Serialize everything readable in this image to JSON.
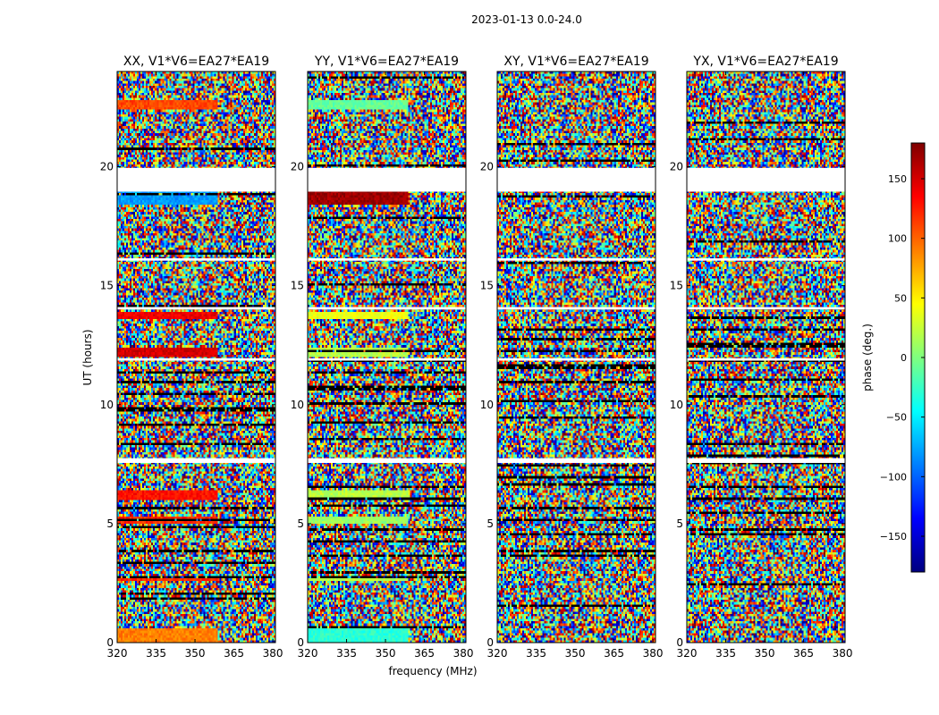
{
  "figure": {
    "suptitle": "2023-01-13 0.0-24.0",
    "xlabel": "frequency (MHz)",
    "ylabel": "UT (hours)"
  },
  "chart_data": {
    "type": "heatmap",
    "panels": [
      {
        "title": "XX, V1*V6=EA27*EA19"
      },
      {
        "title": "YY, V1*V6=EA27*EA19"
      },
      {
        "title": "XY, V1*V6=EA27*EA19"
      },
      {
        "title": "YX, V1*V6=EA27*EA19"
      }
    ],
    "x_range": [
      320,
      381
    ],
    "x_ticks": [
      320,
      335,
      350,
      365,
      380
    ],
    "y_range": [
      0,
      24
    ],
    "y_ticks": [
      0,
      5,
      10,
      15,
      20
    ],
    "colorbar": {
      "label": "phase (deg.)",
      "range": [
        -180,
        180
      ],
      "ticks": [
        -150,
        -100,
        -50,
        0,
        50,
        100,
        150
      ],
      "colormap": [
        "#00007f",
        "#0000ff",
        "#007fff",
        "#00ffff",
        "#7fff7f",
        "#ffff00",
        "#ff7f00",
        "#ff0000",
        "#7f0000"
      ]
    },
    "flagged_rows_hours": [
      [
        18.95,
        19.95
      ],
      [
        7.55,
        7.75
      ],
      [
        11.85,
        11.95
      ],
      [
        14.0,
        14.1
      ],
      [
        16.05,
        16.15
      ]
    ],
    "coherent_rows": [
      {
        "panel": 0,
        "range_hours": [
          22.45,
          22.75
        ],
        "phase": 110
      },
      {
        "panel": 0,
        "range_hours": [
          18.35,
          18.95
        ],
        "phase": -80
      },
      {
        "panel": 0,
        "range_hours": [
          12.05,
          12.45
        ],
        "phase": 150
      },
      {
        "panel": 0,
        "range_hours": [
          13.6,
          13.9
        ],
        "phase": 140
      },
      {
        "panel": 0,
        "range_hours": [
          6.0,
          6.4
        ],
        "phase": 130
      },
      {
        "panel": 0,
        "range_hours": [
          5.0,
          5.3
        ],
        "phase": 120
      },
      {
        "panel": 0,
        "range_hours": [
          2.6,
          2.8
        ],
        "phase": 120
      },
      {
        "panel": 0,
        "range_hours": [
          0.0,
          0.6
        ],
        "phase": 90
      },
      {
        "panel": 1,
        "range_hours": [
          22.45,
          22.75
        ],
        "phase": -10
      },
      {
        "panel": 1,
        "range_hours": [
          18.35,
          18.95
        ],
        "phase": 170
      },
      {
        "panel": 1,
        "range_hours": [
          12.05,
          12.45
        ],
        "phase": 20
      },
      {
        "panel": 1,
        "range_hours": [
          13.6,
          13.9
        ],
        "phase": 40
      },
      {
        "panel": 1,
        "range_hours": [
          6.0,
          6.4
        ],
        "phase": 20
      },
      {
        "panel": 1,
        "range_hours": [
          5.0,
          5.3
        ],
        "phase": 10
      },
      {
        "panel": 1,
        "range_hours": [
          2.6,
          2.8
        ],
        "phase": 20
      },
      {
        "panel": 1,
        "range_hours": [
          0.0,
          0.6
        ],
        "phase": -30
      }
    ]
  }
}
